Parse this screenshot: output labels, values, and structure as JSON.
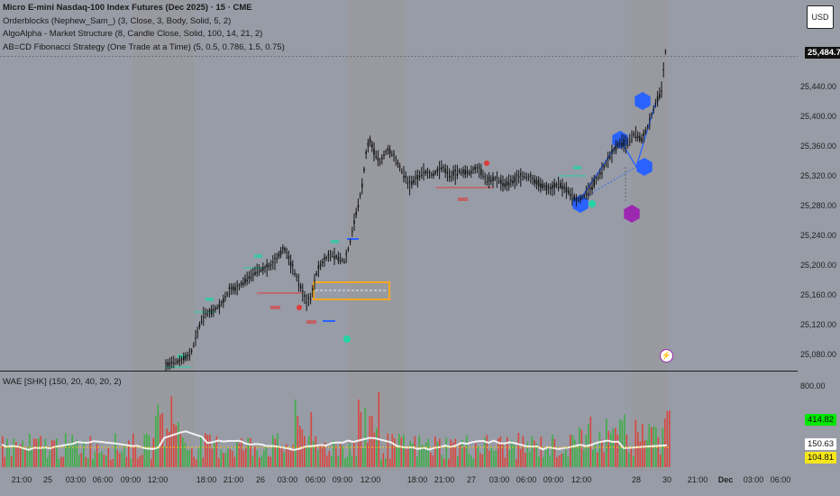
{
  "legend": {
    "title": "Micro E-mini Nasdaq-100 Index Futures (Dec 2025) · 15 · CME",
    "indicator_1": "Orderblocks (Nephew_Sam_) (3, Close, 3, Body, Solid, 5, 2)",
    "indicator_2": "AlgoAlpha - Market Structure (8, Candle Close, Solid, 100, 14, 21, 2)",
    "indicator_3": "AB=CD Fibonacci Strategy (One Trade at a Time) (5, 0.5, 0.786, 1.5, 0.75)"
  },
  "sub_pane": {
    "title": "WAE [SHK] (150, 20, 40, 20, 2)"
  },
  "currency_button": "USD",
  "price_axis": [
    "25,440.00",
    "25,400.00",
    "25,360.00",
    "25,320.00",
    "25,280.00",
    "25,240.00",
    "25,200.00",
    "25,160.00",
    "25,120.00",
    "25,080.00"
  ],
  "last_price": "25,484.75",
  "sub_axis": [
    "800.00"
  ],
  "sub_values": {
    "v1": "414.82",
    "v2": "150.63",
    "v3": "104.81"
  },
  "time_axis": [
    "21:00",
    "25",
    "03:00",
    "06:00",
    "09:00",
    "12:00",
    "18:00",
    "21:00",
    "26",
    "03:00",
    "06:00",
    "09:00",
    "12:00",
    "18:00",
    "21:00",
    "27",
    "03:00",
    "06:00",
    "09:00",
    "12:00",
    "28",
    "30",
    "21:00",
    "Dec",
    "03:00",
    "06:00"
  ],
  "markers": {
    "bos": "BOS",
    "choch": "CHoCH"
  },
  "colors": {
    "background": "#979ca6",
    "session_light": "#a3a8b3",
    "session_dark": "#9a9a9e",
    "bull_volume": "#3fae49",
    "bear_volume": "#d8463f",
    "explosion_line": "#f0f0f0",
    "dead_zone": "#f6c619",
    "fib_blue": "#2962ff",
    "fib_purple": "#9c27b0",
    "orderblock": "#f5a623"
  }
}
